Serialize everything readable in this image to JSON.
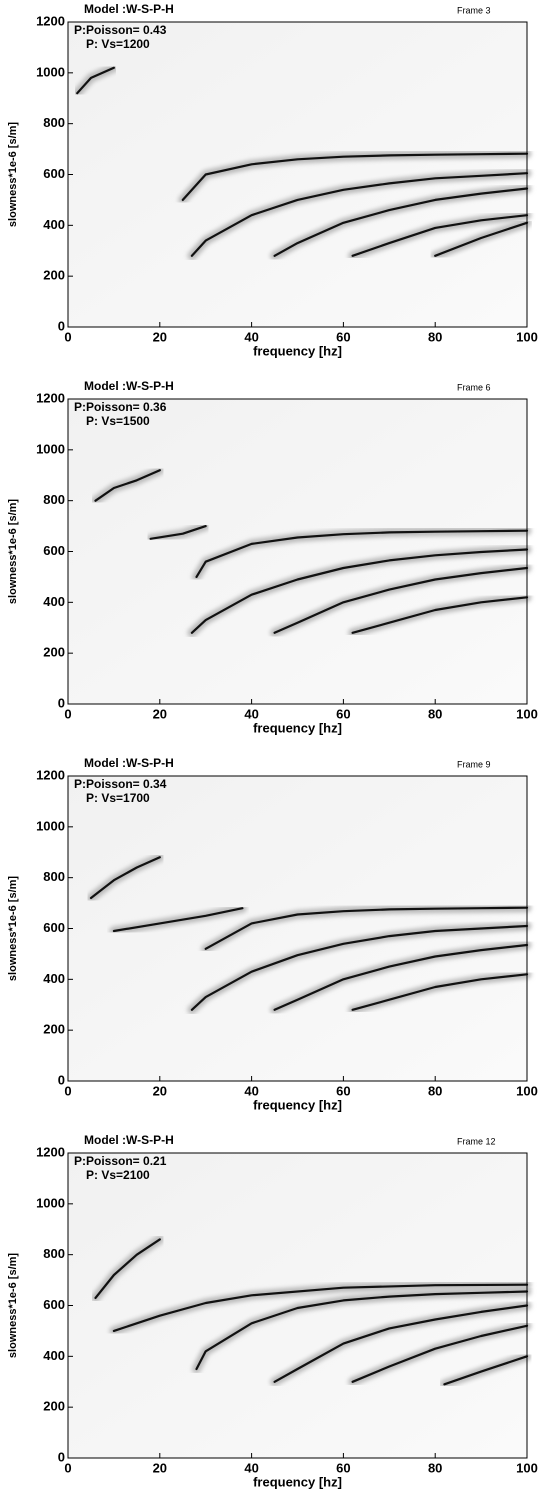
{
  "chart_data": [
    {
      "type": "line",
      "title": "Model :W-S-P-H",
      "frame": "Frame 3",
      "annotations": [
        "P:Poisson= 0.43",
        "P: Vs=1200"
      ],
      "xlabel": "frequency [hz]",
      "ylabel": "slowness*1e-6 [s/m]",
      "xlim": [
        0,
        100
      ],
      "xticks": [
        0,
        20,
        40,
        60,
        80,
        100
      ],
      "ylim": [
        0,
        1200
      ],
      "yticks": [
        0,
        200,
        400,
        600,
        800,
        1000,
        1200
      ],
      "series": [
        {
          "color": "#111111",
          "x": [
            2,
            5,
            10
          ],
          "values": [
            920,
            980,
            1020
          ]
        },
        {
          "color": "#111111",
          "x": [
            25,
            30,
            40,
            50,
            60,
            70,
            80,
            90,
            100
          ],
          "values": [
            500,
            600,
            640,
            660,
            670,
            675,
            678,
            680,
            682
          ]
        },
        {
          "color": "#111111",
          "x": [
            27,
            30,
            40,
            50,
            60,
            70,
            80,
            90,
            100
          ],
          "values": [
            280,
            340,
            440,
            500,
            540,
            565,
            585,
            595,
            605
          ]
        },
        {
          "color": "#111111",
          "x": [
            45,
            50,
            60,
            70,
            80,
            90,
            100
          ],
          "values": [
            280,
            330,
            410,
            460,
            500,
            525,
            545
          ]
        },
        {
          "color": "#111111",
          "x": [
            62,
            70,
            80,
            90,
            100
          ],
          "values": [
            280,
            330,
            390,
            420,
            440
          ]
        },
        {
          "color": "#111111",
          "x": [
            80,
            90,
            100
          ],
          "values": [
            280,
            350,
            410
          ]
        }
      ]
    },
    {
      "type": "line",
      "title": "Model :W-S-P-H",
      "frame": "Frame 6",
      "annotations": [
        "P:Poisson= 0.36",
        "P: Vs=1500"
      ],
      "xlabel": "frequency [hz]",
      "ylabel": "slowness*1e-6 [s/m]",
      "xlim": [
        0,
        100
      ],
      "xticks": [
        0,
        20,
        40,
        60,
        80,
        100
      ],
      "ylim": [
        0,
        1200
      ],
      "yticks": [
        0,
        200,
        400,
        600,
        800,
        1000,
        1200
      ],
      "series": [
        {
          "color": "#111111",
          "x": [
            6,
            10,
            15,
            20
          ],
          "values": [
            800,
            850,
            880,
            920
          ]
        },
        {
          "color": "#111111",
          "x": [
            18,
            25,
            30
          ],
          "values": [
            650,
            670,
            700
          ]
        },
        {
          "color": "#111111",
          "x": [
            28,
            30,
            40,
            50,
            60,
            70,
            80,
            90,
            100
          ],
          "values": [
            500,
            560,
            630,
            655,
            668,
            675,
            678,
            680,
            682
          ]
        },
        {
          "color": "#111111",
          "x": [
            27,
            30,
            40,
            50,
            60,
            70,
            80,
            90,
            100
          ],
          "values": [
            280,
            330,
            430,
            490,
            535,
            565,
            585,
            598,
            608
          ]
        },
        {
          "color": "#111111",
          "x": [
            45,
            50,
            60,
            70,
            80,
            90,
            100
          ],
          "values": [
            280,
            320,
            400,
            450,
            490,
            515,
            535
          ]
        },
        {
          "color": "#111111",
          "x": [
            62,
            70,
            80,
            90,
            100
          ],
          "values": [
            280,
            320,
            370,
            400,
            420
          ]
        }
      ]
    },
    {
      "type": "line",
      "title": "Model :W-S-P-H",
      "frame": "Frame 9",
      "annotations": [
        "P:Poisson= 0.34",
        "P: Vs=1700"
      ],
      "xlabel": "frequency [hz]",
      "ylabel": "slowness*1e-6 [s/m]",
      "xlim": [
        0,
        100
      ],
      "xticks": [
        0,
        20,
        40,
        60,
        80,
        100
      ],
      "ylim": [
        0,
        1200
      ],
      "yticks": [
        0,
        200,
        400,
        600,
        800,
        1000,
        1200
      ],
      "series": [
        {
          "color": "#111111",
          "x": [
            5,
            10,
            15,
            20
          ],
          "values": [
            720,
            790,
            840,
            880
          ]
        },
        {
          "color": "#111111",
          "x": [
            10,
            20,
            30,
            38
          ],
          "values": [
            590,
            620,
            650,
            680
          ]
        },
        {
          "color": "#111111",
          "x": [
            30,
            40,
            50,
            60,
            70,
            80,
            90,
            100
          ],
          "values": [
            520,
            620,
            655,
            668,
            675,
            678,
            680,
            682
          ]
        },
        {
          "color": "#111111",
          "x": [
            27,
            30,
            40,
            50,
            60,
            70,
            80,
            90,
            100
          ],
          "values": [
            280,
            330,
            430,
            495,
            540,
            570,
            590,
            600,
            610
          ]
        },
        {
          "color": "#111111",
          "x": [
            45,
            50,
            60,
            70,
            80,
            90,
            100
          ],
          "values": [
            280,
            320,
            400,
            450,
            490,
            515,
            535
          ]
        },
        {
          "color": "#111111",
          "x": [
            62,
            70,
            80,
            90,
            100
          ],
          "values": [
            280,
            320,
            370,
            400,
            420
          ]
        }
      ]
    },
    {
      "type": "line",
      "title": "Model :W-S-P-H",
      "frame": "Frame 12",
      "annotations": [
        "P:Poisson= 0.21",
        "P: Vs=2100"
      ],
      "xlabel": "frequency [hz]",
      "ylabel": "slowness*1e-6 [s/m]",
      "xlim": [
        0,
        100
      ],
      "xticks": [
        0,
        20,
        40,
        60,
        80,
        100
      ],
      "ylim": [
        0,
        1200
      ],
      "yticks": [
        0,
        200,
        400,
        600,
        800,
        1000,
        1200
      ],
      "series": [
        {
          "color": "#111111",
          "x": [
            6,
            10,
            15,
            20
          ],
          "values": [
            630,
            720,
            800,
            860
          ]
        },
        {
          "color": "#111111",
          "x": [
            10,
            20,
            30,
            40,
            60,
            80,
            100
          ],
          "values": [
            500,
            560,
            610,
            640,
            670,
            680,
            682
          ]
        },
        {
          "color": "#111111",
          "x": [
            28,
            30,
            40,
            50,
            60,
            70,
            80,
            90,
            100
          ],
          "values": [
            350,
            420,
            530,
            590,
            620,
            635,
            645,
            650,
            655
          ]
        },
        {
          "color": "#111111",
          "x": [
            45,
            50,
            60,
            70,
            80,
            90,
            100
          ],
          "values": [
            300,
            350,
            450,
            510,
            545,
            575,
            600
          ]
        },
        {
          "color": "#111111",
          "x": [
            62,
            70,
            80,
            90,
            100
          ],
          "values": [
            300,
            360,
            430,
            480,
            520
          ]
        },
        {
          "color": "#111111",
          "x": [
            82,
            90,
            100
          ],
          "values": [
            290,
            340,
            400
          ]
        }
      ]
    }
  ]
}
